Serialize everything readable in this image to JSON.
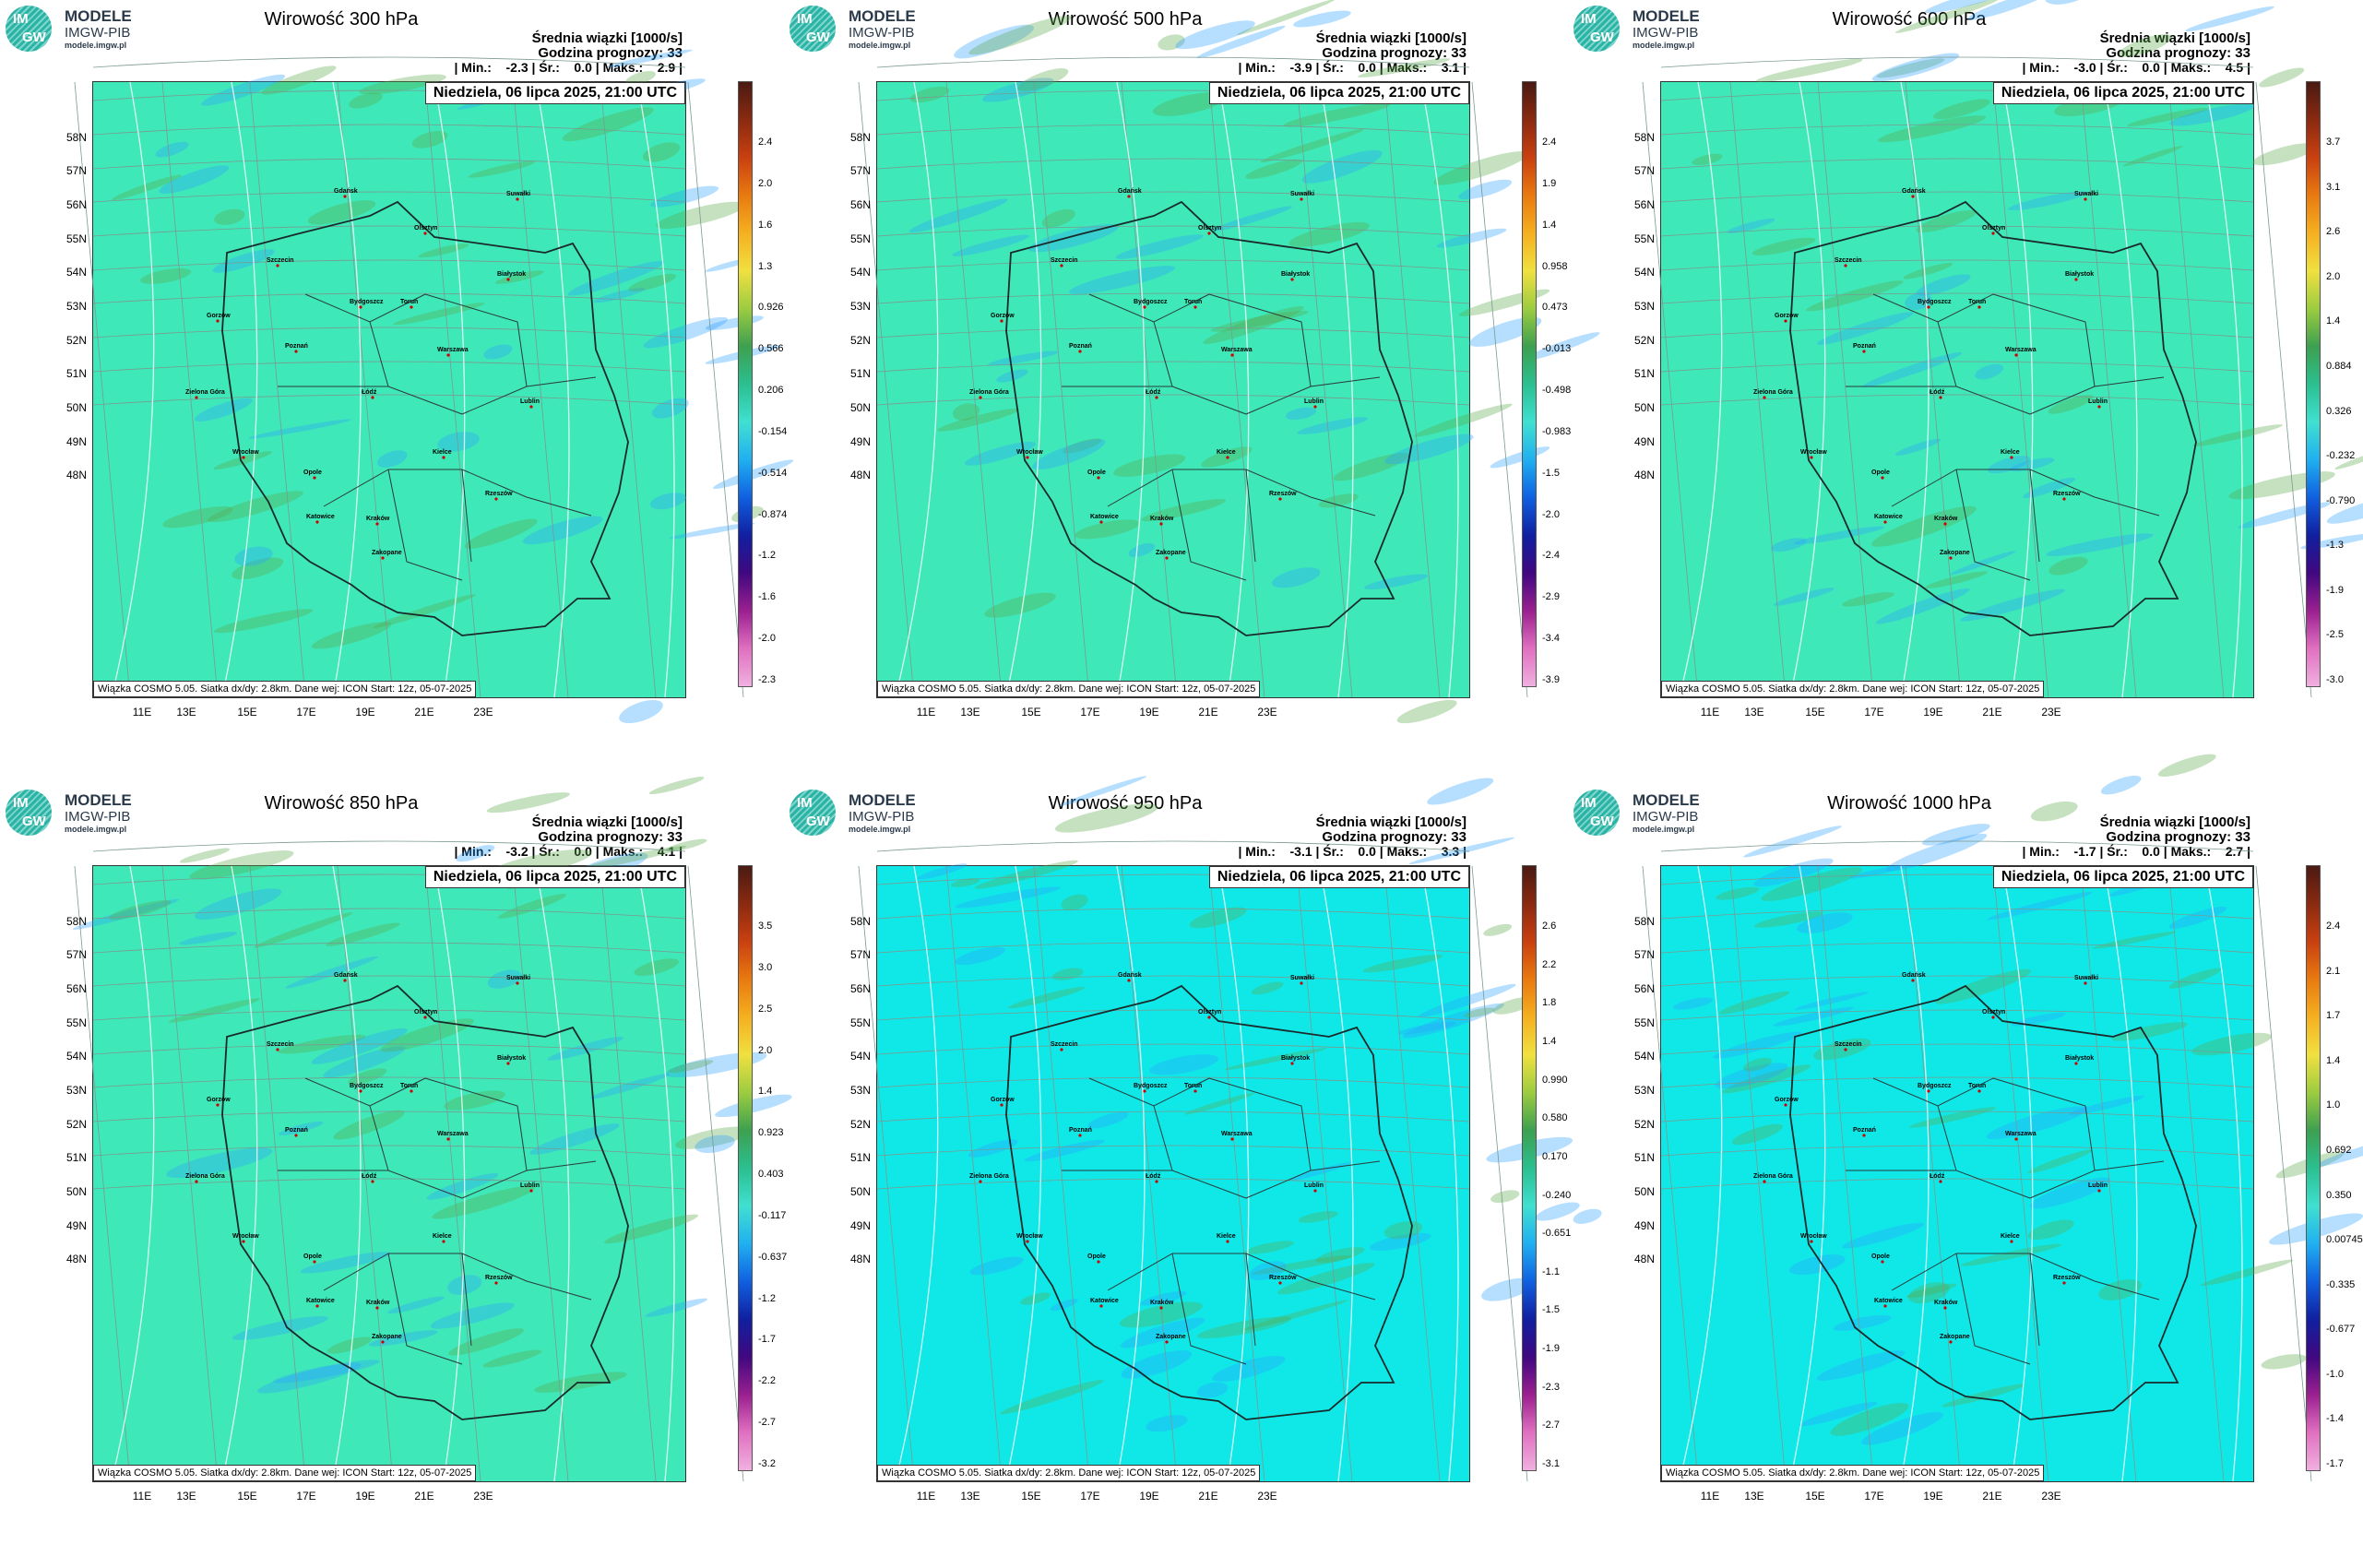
{
  "logo": {
    "line1": "MODELE",
    "line2": "IMGW-PIB",
    "line3": "modele.imgw.pl",
    "mark_top": "IM",
    "mark_bottom": "GW"
  },
  "common": {
    "subtitle": "Średnia wiązki [1000/s]",
    "forecast_hour": "Godzina prognozy: 33",
    "date": "Niedziela, 06 lipca 2025, 21:00 UTC",
    "footer": "Wiązka COSMO 5.05. Siatka dx/dy: 2.8km. Dane wej: ICON Start: 12z, 05-07-2025",
    "lat_labels": [
      "58N",
      "57N",
      "56N",
      "55N",
      "54N",
      "53N",
      "52N",
      "51N",
      "50N",
      "49N",
      "48N"
    ],
    "lon_labels": [
      "11E",
      "13E",
      "15E",
      "17E",
      "19E",
      "21E",
      "23E"
    ],
    "cities": [
      "Gdańsk",
      "Suwałki",
      "Olsztyn",
      "Szczecin",
      "Białystok",
      "Bydgoszcz",
      "Toruń",
      "Gorzów",
      "Poznań",
      "Warszawa",
      "Zielona Góra",
      "Łódź",
      "Lublin",
      "Wrocław",
      "Kielce",
      "Opole",
      "Katowice",
      "Kraków",
      "Rzeszów",
      "Zakopane"
    ]
  },
  "colors": {
    "field_upper": "#3fe8b8",
    "field_lower": "#10e8e8",
    "positive": "#5aa84a",
    "negative": "#2aa0ff"
  },
  "panels": [
    {
      "title": "Wirowość 300 hPa",
      "stats": "| Min.:    -2.3 | Śr.:    0.0 | Maks.:    2.9 |",
      "cb_labels": [
        "2.4",
        "2.0",
        "1.6",
        "1.3",
        "0.926",
        "0.566",
        "0.206",
        "-0.154",
        "-0.514",
        "-0.874",
        "-1.2",
        "-1.6",
        "-2.0",
        "-2.3"
      ],
      "field": "upper"
    },
    {
      "title": "Wirowość 500 hPa",
      "stats": "| Min.:    -3.9 | Śr.:    0.0 | Maks.:    3.1 |",
      "cb_labels": [
        "2.4",
        "1.9",
        "1.4",
        "0.958",
        "0.473",
        "-0.013",
        "-0.498",
        "-0.983",
        "-1.5",
        "-2.0",
        "-2.4",
        "-2.9",
        "-3.4",
        "-3.9"
      ],
      "field": "upper"
    },
    {
      "title": "Wirowość 600 hPa",
      "stats": "| Min.:    -3.0 | Śr.:    0.0 | Maks.:    4.5 |",
      "cb_labels": [
        "3.7",
        "3.1",
        "2.6",
        "2.0",
        "1.4",
        "0.884",
        "0.326",
        "-0.232",
        "-0.790",
        "-1.3",
        "-1.9",
        "-2.5",
        "-3.0"
      ],
      "field": "upper"
    },
    {
      "title": "Wirowość 850 hPa",
      "stats": "| Min.:    -3.2 | Śr.:    0.0 | Maks.:    4.1 |",
      "cb_labels": [
        "3.5",
        "3.0",
        "2.5",
        "2.0",
        "1.4",
        "0.923",
        "0.403",
        "-0.117",
        "-0.637",
        "-1.2",
        "-1.7",
        "-2.2",
        "-2.7",
        "-3.2"
      ],
      "field": "upper"
    },
    {
      "title": "Wirowość 950 hPa",
      "stats": "| Min.:    -3.1 | Śr.:    0.0 | Maks.:    3.3 |",
      "cb_labels": [
        "2.6",
        "2.2",
        "1.8",
        "1.4",
        "0.990",
        "0.580",
        "0.170",
        "-0.240",
        "-0.651",
        "-1.1",
        "-1.5",
        "-1.9",
        "-2.3",
        "-2.7",
        "-3.1"
      ],
      "field": "lower"
    },
    {
      "title": "Wirowość 1000 hPa",
      "stats": "| Min.:    -1.7 | Śr.:    0.0 | Maks.:    2.7 |",
      "cb_labels": [
        "2.4",
        "2.1",
        "1.7",
        "1.4",
        "1.0",
        "0.692",
        "0.350",
        "0.00745",
        "-0.335",
        "-0.677",
        "-1.0",
        "-1.4",
        "-1.7"
      ],
      "field": "lower"
    }
  ]
}
